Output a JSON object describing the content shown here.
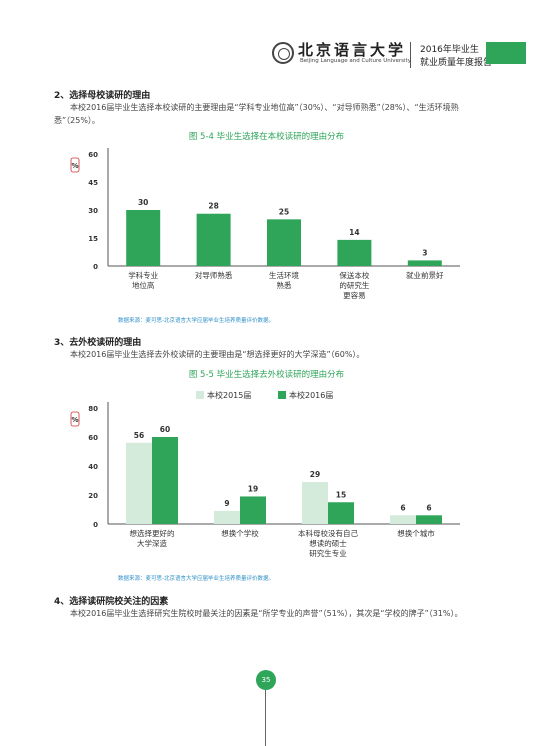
{
  "header": {
    "university_cn": "北京语言大学",
    "university_en": "Beijing Language and Culture University",
    "report_line1": "2016年毕业生",
    "report_line2": "就业质量年度报告"
  },
  "sections": [
    {
      "heading": "2、选择母校读研的理由",
      "paragraph": "本校2016届毕业生选择本校读研的主要理由是“学科专业地位高”（30%）、“对导师熟悉”（28%）、“生活环境熟悉”（25%）。"
    },
    {
      "heading": "3、去外校读研的理由",
      "paragraph": "本校2016届毕业生选择去外校读研的主要理由是“想选择更好的大学深造”（60%）。"
    },
    {
      "heading": "4、选择读研院校关注的因素",
      "paragraph": "本校2016届毕业生选择研究生院校时最关注的因素是“所学专业的声誉”（51%），其次是“学校的牌子”（31%）。"
    }
  ],
  "figures": [
    {
      "title": "图 5-4   毕业生选择在本校读研的理由分布",
      "source": "数据来源：麦可思-北京语言大学应届毕业生培养质量评价数据。"
    },
    {
      "title": "图 5-5   毕业生选择去外校读研的理由分布",
      "source": "数据来源：麦可思-北京语言大学应届毕业生培养质量评价数据。"
    }
  ],
  "chart_data": [
    {
      "type": "bar",
      "title": "图 5-4   毕业生选择在本校读研的理由分布",
      "ylabel": "%",
      "ylim": [
        0,
        60
      ],
      "yticks": [
        0,
        15,
        30,
        45,
        60
      ],
      "categories": [
        "学科专业\n地位高",
        "对导师熟悉",
        "生活环境\n熟悉",
        "保送本校\n的研究生\n更容易",
        "就业前景好"
      ],
      "values": [
        30,
        28,
        25,
        14,
        3
      ],
      "colors": {
        "bar": "#2fa55a"
      },
      "grid": false
    },
    {
      "type": "bar",
      "title": "图 5-5   毕业生选择去外校读研的理由分布",
      "ylabel": "%",
      "ylim": [
        0,
        80
      ],
      "yticks": [
        0,
        20,
        40,
        60,
        80
      ],
      "categories": [
        "想选择更好的\n大学深造",
        "想换个学校",
        "本科母校没有自己\n想读的硕士\n研究生专业",
        "想换个城市"
      ],
      "series": [
        {
          "name": "本校2015届",
          "values": [
            56,
            9,
            29,
            6
          ],
          "color": "#d4eadb"
        },
        {
          "name": "本校2016届",
          "values": [
            60,
            19,
            15,
            6
          ],
          "color": "#2fa55a"
        }
      ],
      "legend": "top",
      "grid": false
    }
  ],
  "page_number": "35"
}
